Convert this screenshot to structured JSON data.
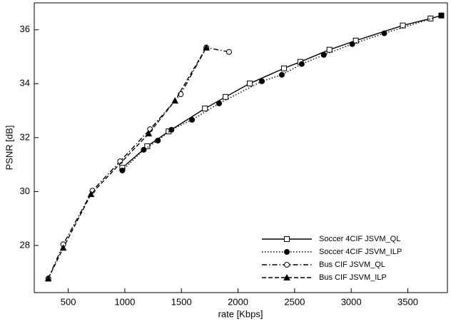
{
  "chart_data": {
    "type": "line",
    "x_label": "rate [Kbps]",
    "y_label": "PSNR [dB]",
    "xlim": [
      200,
      3850
    ],
    "ylim": [
      26.25,
      37
    ],
    "xticks": [
      500,
      1000,
      1500,
      2000,
      2500,
      3000,
      3500
    ],
    "yticks": [
      28,
      30,
      32,
      34,
      36
    ],
    "legend": "lower right",
    "series": [
      {
        "name": "Soccer 4CIF JSVM_QL",
        "color": "#000000",
        "marker": "square-open",
        "dash": "solid",
        "x": [
          978,
          1198,
          1387,
          1708,
          1890,
          2104,
          2406,
          2550,
          2808,
          3041,
          3456,
          3701,
          3796
        ],
        "values": [
          30.88,
          31.68,
          32.23,
          33.08,
          33.51,
          34.01,
          34.57,
          34.81,
          35.26,
          35.6,
          36.16,
          36.42,
          36.53
        ]
      },
      {
        "name": "Soccer 4CIF JSVM_ILP",
        "color": "#000000",
        "marker": "circle-filled",
        "dash": "dotted",
        "x": [
          978,
          1167,
          1292,
          1412,
          1594,
          1833,
          2211,
          2387,
          2563,
          2758,
          3009,
          3292,
          3796
        ],
        "values": [
          30.78,
          31.55,
          31.89,
          32.29,
          32.66,
          33.27,
          34.09,
          34.33,
          34.73,
          35.07,
          35.47,
          35.87,
          36.53
        ]
      },
      {
        "name": "Bus CIF JSVM_QL",
        "color": "#000000",
        "marker": "circle-open",
        "dash": "dashdot",
        "x": [
          324,
          456,
          714,
          959,
          1223,
          1494,
          1720,
          1921
        ],
        "values": [
          26.77,
          28.04,
          30.03,
          31.12,
          32.31,
          33.61,
          35.34,
          35.18
        ]
      },
      {
        "name": "Bus CIF JSVM_ILP",
        "color": "#000000",
        "marker": "triangle-filled",
        "dash": "dashed",
        "x": [
          324,
          456,
          701,
          1211,
          1443,
          1720
        ],
        "values": [
          26.77,
          27.91,
          29.9,
          32.15,
          33.37,
          35.34
        ]
      }
    ]
  }
}
